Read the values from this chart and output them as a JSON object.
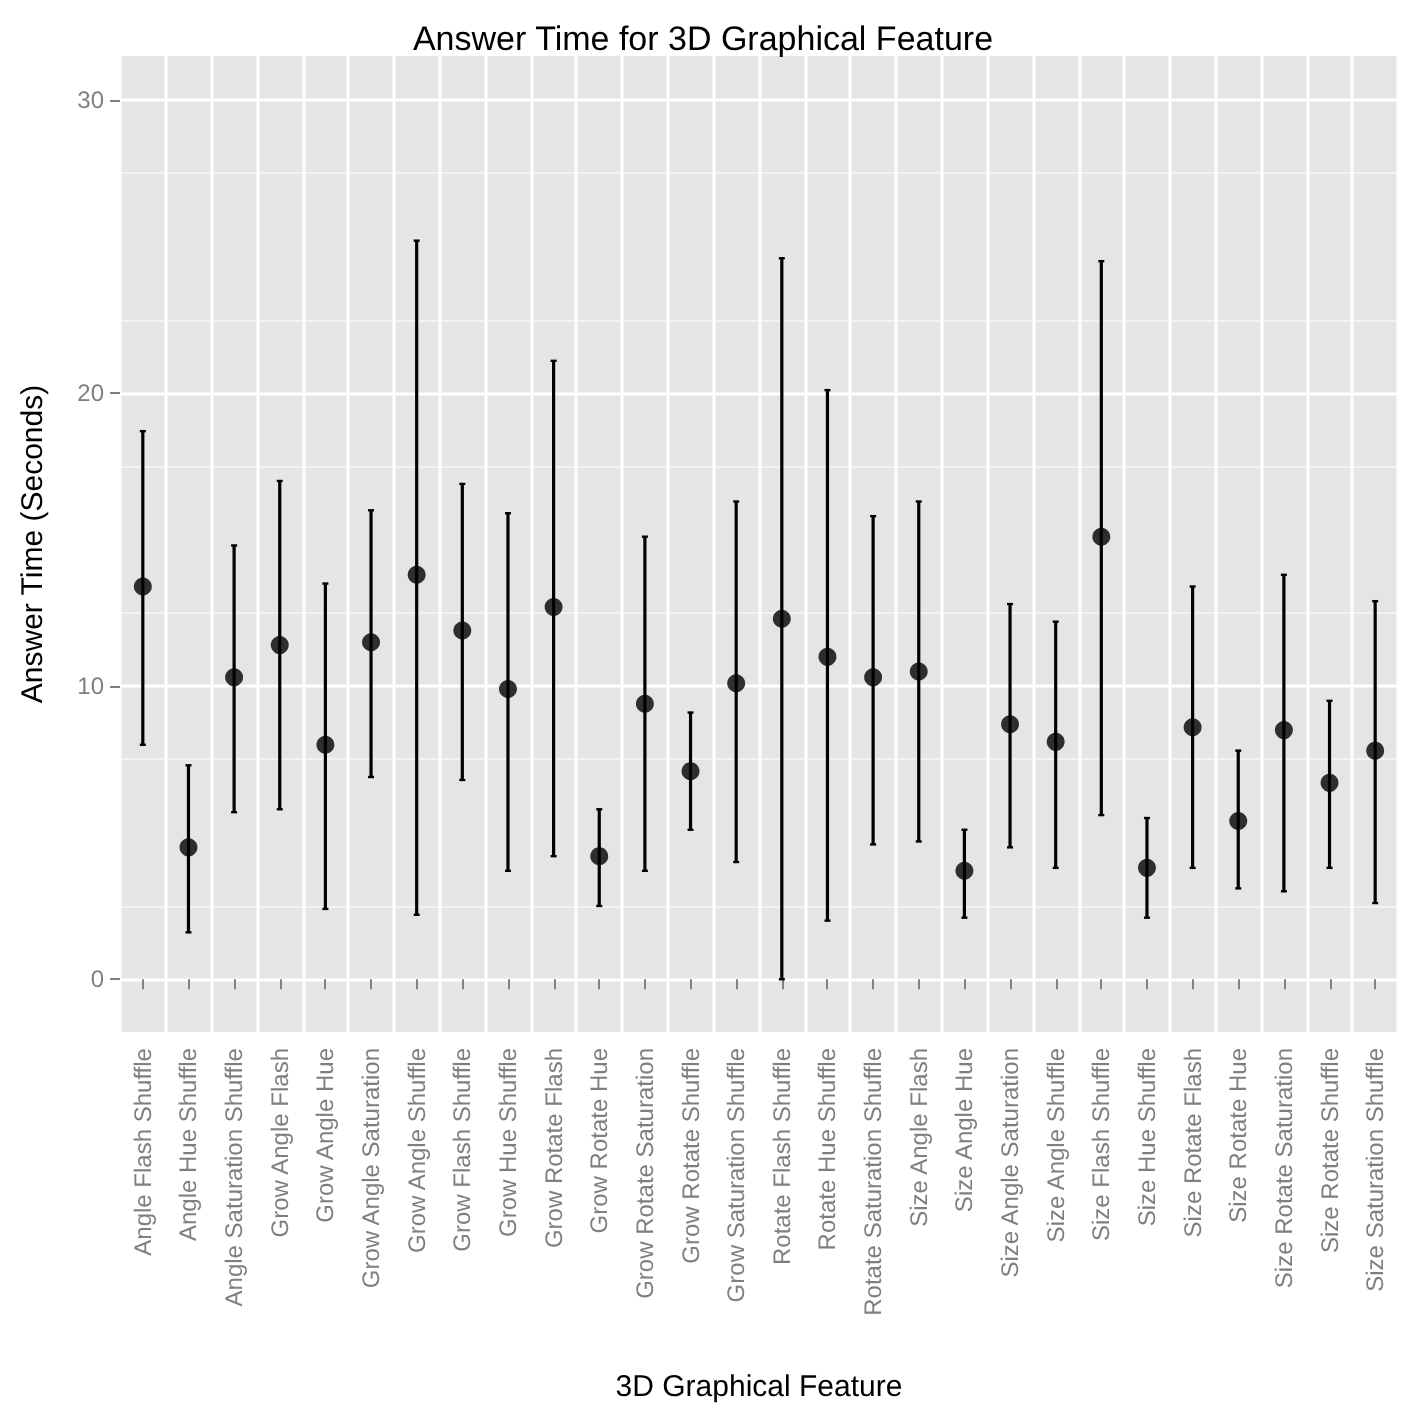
{
  "chart_data": {
    "type": "scatter",
    "title": "Answer Time for 3D Graphical Feature",
    "xlabel": "3D Graphical Feature",
    "ylabel": "Answer Time (Seconds)",
    "categories": [
      "Angle Flash Shuffle",
      "Angle Hue Shuffle",
      "Angle Saturation Shuffle",
      "Grow Angle Flash",
      "Grow Angle Hue",
      "Grow Angle Saturation",
      "Grow Angle Shuffle",
      "Grow Flash Shuffle",
      "Grow Hue Shuffle",
      "Grow Rotate Flash",
      "Grow Rotate Hue",
      "Grow Rotate Saturation",
      "Grow Rotate Shuffle",
      "Grow Saturation Shuffle",
      "Rotate Flash Shuffle",
      "Rotate Hue Shuffle",
      "Rotate Saturation Shuffle",
      "Size Angle Flash",
      "Size Angle Hue",
      "Size Angle Saturation",
      "Size Angle Shuffle",
      "Size Flash Shuffle",
      "Size Hue Shuffle",
      "Size Rotate Flash",
      "Size Rotate Hue",
      "Size Rotate Saturation",
      "Size Rotate Shuffle",
      "Size Saturation Shuffle"
    ],
    "values": [
      13.4,
      4.5,
      10.3,
      11.4,
      8.0,
      11.5,
      13.8,
      11.9,
      9.9,
      12.7,
      4.2,
      9.4,
      7.1,
      10.1,
      12.3,
      11.0,
      10.3,
      10.5,
      3.7,
      8.7,
      8.1,
      15.1,
      3.8,
      8.6,
      5.4,
      8.5,
      6.7,
      7.8
    ],
    "errors": [
      [
        8.0,
        18.7
      ],
      [
        1.6,
        7.3
      ],
      [
        5.7,
        14.8
      ],
      [
        5.8,
        17.0
      ],
      [
        2.4,
        13.5
      ],
      [
        6.9,
        16.0
      ],
      [
        2.2,
        25.2
      ],
      [
        6.8,
        16.9
      ],
      [
        3.7,
        15.9
      ],
      [
        4.2,
        21.1
      ],
      [
        2.5,
        5.8
      ],
      [
        3.7,
        15.1
      ],
      [
        5.1,
        9.1
      ],
      [
        4.0,
        16.3
      ],
      [
        0.0,
        24.6
      ],
      [
        2.0,
        20.1
      ],
      [
        4.6,
        15.8
      ],
      [
        4.7,
        16.3
      ],
      [
        2.1,
        5.1
      ],
      [
        4.5,
        12.8
      ],
      [
        3.8,
        12.2
      ],
      [
        5.6,
        24.5
      ],
      [
        2.1,
        5.5
      ],
      [
        3.8,
        13.4
      ],
      [
        3.1,
        7.8
      ],
      [
        3.0,
        13.8
      ],
      [
        3.8,
        9.5
      ],
      [
        2.6,
        12.9
      ]
    ],
    "color": "#000000",
    "marker": "circle",
    "ylim": [
      -1.8,
      31.5
    ],
    "yticks": [
      0,
      10,
      20,
      30
    ],
    "grid": true
  }
}
